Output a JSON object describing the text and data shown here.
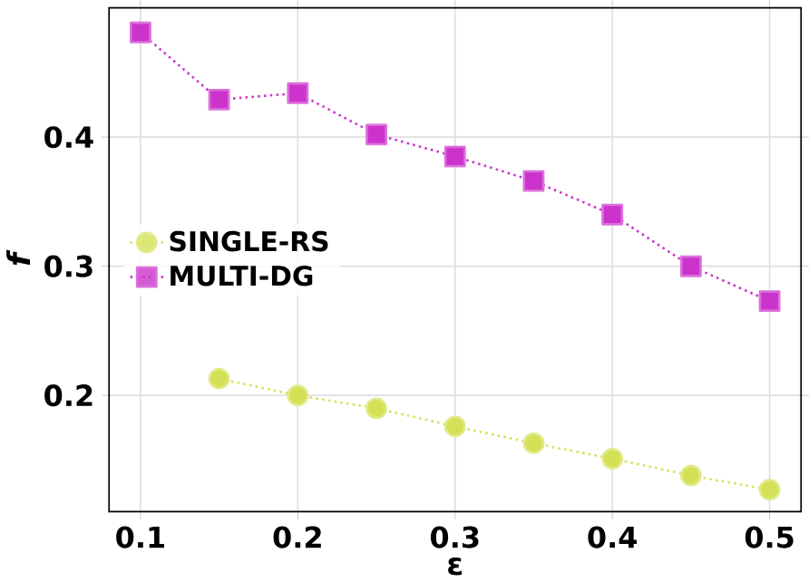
{
  "chart_data": {
    "type": "line",
    "xlabel": "ε",
    "ylabel": "f",
    "x": [
      0.1,
      0.15,
      0.2,
      0.25,
      0.3,
      0.35,
      0.4,
      0.45,
      0.5
    ],
    "series": [
      {
        "name": "SINGLE-RS",
        "color": "#d4e157",
        "marker": "circle",
        "line_style": "dotted",
        "values": [
          null,
          0.213,
          0.2,
          0.19,
          0.176,
          0.163,
          0.151,
          0.138,
          0.127
        ]
      },
      {
        "name": "MULTI-DG",
        "color": "#cc33cc",
        "marker": "square",
        "line_style": "dotted",
        "values": [
          0.481,
          0.429,
          0.434,
          0.402,
          0.385,
          0.366,
          0.34,
          0.3,
          0.273
        ]
      }
    ],
    "xlim": [
      0.08,
      0.52
    ],
    "ylim": [
      0.11,
      0.5
    ],
    "xticks": [
      0.1,
      0.2,
      0.3,
      0.4,
      0.5
    ],
    "yticks": [
      0.2,
      0.3,
      0.4
    ],
    "grid": true,
    "legend": "left"
  }
}
